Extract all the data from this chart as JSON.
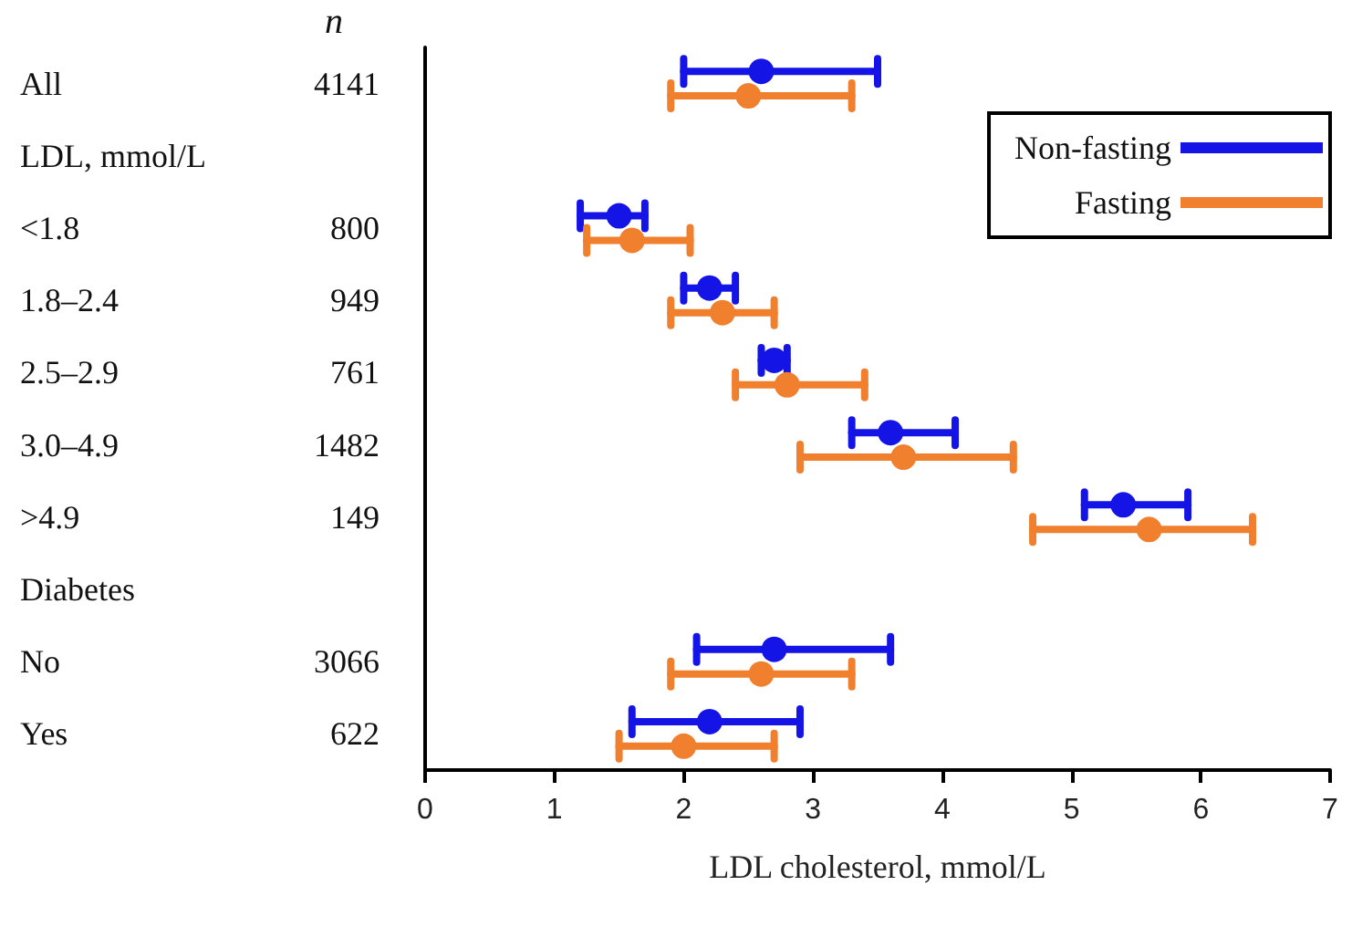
{
  "chart_data": {
    "type": "scatter",
    "orientation": "horizontal",
    "xlabel": "LDL cholesterol, mmol/L",
    "categories": [
      "All",
      "LDL, mmol/L",
      "<1.8",
      "1.8–2.4",
      "2.5–2.9",
      "3.0–4.9",
      ">4.9",
      "Diabetes",
      "No",
      "Yes"
    ],
    "series": [
      {
        "name": "Non-fasting",
        "color": "#1414e6",
        "values": [
          2.6,
          null,
          1.5,
          2.2,
          2.7,
          3.6,
          5.4,
          null,
          2.7,
          2.2
        ],
        "errors": [
          [
            2.0,
            3.5
          ],
          null,
          [
            1.2,
            1.7
          ],
          [
            2.0,
            2.4
          ],
          [
            2.6,
            2.8
          ],
          [
            3.3,
            4.1
          ],
          [
            5.1,
            5.9
          ],
          null,
          [
            2.1,
            3.6
          ],
          [
            1.6,
            2.9
          ]
        ]
      },
      {
        "name": "Fasting",
        "color": "#f07f2e",
        "values": [
          2.5,
          null,
          1.6,
          2.3,
          2.8,
          3.7,
          5.6,
          null,
          2.6,
          2.0
        ],
        "errors": [
          [
            1.9,
            3.3
          ],
          null,
          [
            1.25,
            2.05
          ],
          [
            1.9,
            2.7
          ],
          [
            2.4,
            3.4
          ],
          [
            2.9,
            4.55
          ],
          [
            4.7,
            6.4
          ],
          null,
          [
            1.9,
            3.3
          ],
          [
            1.5,
            2.7
          ]
        ]
      }
    ],
    "annotations": [
      "n",
      "4141",
      "800",
      "949",
      "761",
      "1482",
      "149",
      "3066",
      "622"
    ],
    "xlim": [
      0,
      7
    ],
    "xticks": [
      0,
      1,
      2,
      3,
      4,
      5,
      6,
      7
    ],
    "marker": "circle",
    "legend": "top right",
    "grid": false
  }
}
